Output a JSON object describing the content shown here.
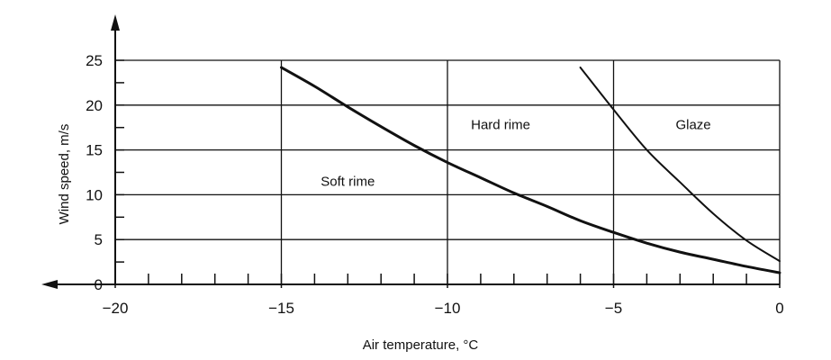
{
  "chart_data": {
    "type": "line",
    "xlabel": "Air temperature, °C",
    "ylabel": "Wind speed, m/s",
    "xlim": [
      -20,
      0
    ],
    "ylim": [
      0,
      25
    ],
    "x_ticks": [
      -20,
      -15,
      -10,
      -5,
      0
    ],
    "x_tick_labels": [
      "−20",
      "−15",
      "−10",
      "−5",
      "0"
    ],
    "x_minor_step": 1,
    "y_ticks": [
      0,
      5,
      10,
      15,
      20,
      25
    ],
    "y_tick_labels": [
      "0",
      "5",
      "10",
      "15",
      "20",
      "25"
    ],
    "y_minor_step": 2.5,
    "grid": true,
    "grid_x": [
      -15,
      -10,
      -5,
      0
    ],
    "grid_y": [
      5,
      10,
      15,
      20,
      25
    ],
    "series": [
      {
        "x": [
          -15,
          -14,
          -13,
          -12,
          -11,
          -10,
          -9,
          -8,
          -7,
          -6,
          -5,
          -4,
          -3,
          -2,
          -1,
          0
        ],
        "y": [
          24.2,
          22.1,
          19.8,
          17.6,
          15.5,
          13.6,
          11.9,
          10.2,
          8.7,
          7.1,
          5.8,
          4.6,
          3.6,
          2.8,
          2.0,
          1.3
        ],
        "stroke_width": 3
      },
      {
        "x": [
          -6,
          -5,
          -4,
          -3,
          -2,
          -1,
          0
        ],
        "y": [
          24.2,
          19.5,
          15.0,
          11.4,
          7.9,
          4.9,
          2.6
        ],
        "stroke_width": 2
      }
    ],
    "annotations": [
      {
        "text": "Soft rime",
        "x": -13.0,
        "y": 11.0
      },
      {
        "text": "Hard rime",
        "x": -8.4,
        "y": 17.3
      },
      {
        "text": "Glaze",
        "x": -2.6,
        "y": 17.3
      }
    ]
  }
}
